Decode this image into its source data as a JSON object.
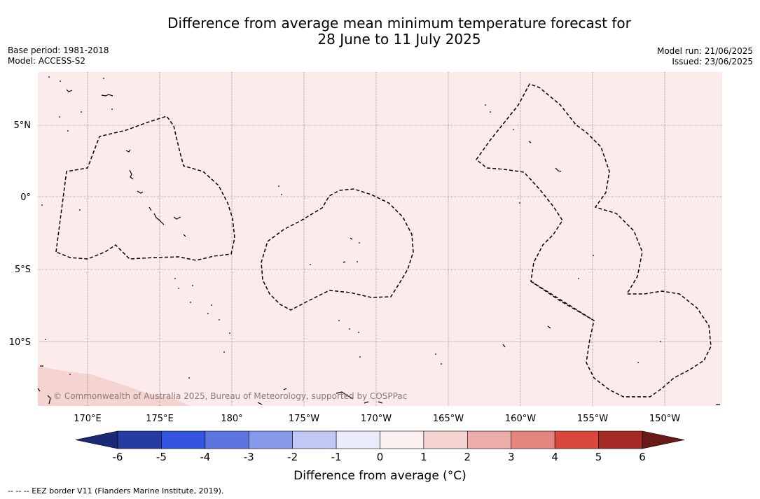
{
  "title_line1": "Difference from average mean minimum temperature forecast for",
  "title_line2": "28 June to 11 July 2025",
  "meta_left": {
    "line1": "Base period: 1981-2018",
    "line2": "Model: ACCESS-S2"
  },
  "meta_right": {
    "line1": "Model run: 21/06/2025",
    "line2": "Issued: 23/06/2025"
  },
  "lat_labels": [
    "5°N",
    "0°",
    "5°S",
    "10°S"
  ],
  "lon_labels": [
    "170°E",
    "175°E",
    "180°",
    "175°W",
    "170°W",
    "165°W",
    "160°W",
    "155°W",
    "150°W"
  ],
  "copyright": "© Commonwealth of Australia 2025, Bureau of Meteorology, supported by COSPPac",
  "colorbar": {
    "ticks": [
      "-6",
      "-5",
      "-4",
      "-3",
      "-2",
      "-1",
      "0",
      "1",
      "2",
      "3",
      "4",
      "5",
      "6"
    ],
    "colors": [
      "#273ca3",
      "#3455e0",
      "#5c75e0",
      "#8799ea",
      "#c0c8f4",
      "#e9ebfb",
      "#fbf0ef",
      "#f4d3d0",
      "#ecaca7",
      "#e5857e",
      "#d9473f",
      "#a62a24"
    ],
    "under_color": "#1a2a78",
    "over_color": "#6a1a16",
    "label": "Difference from average (°C)"
  },
  "map_colors": {
    "main_fill": "#fbebea",
    "warm_fill": "#f4d3d0"
  },
  "footer": "-- -- -- EEZ border V11 (Flanders Marine Institute, 2019)."
}
